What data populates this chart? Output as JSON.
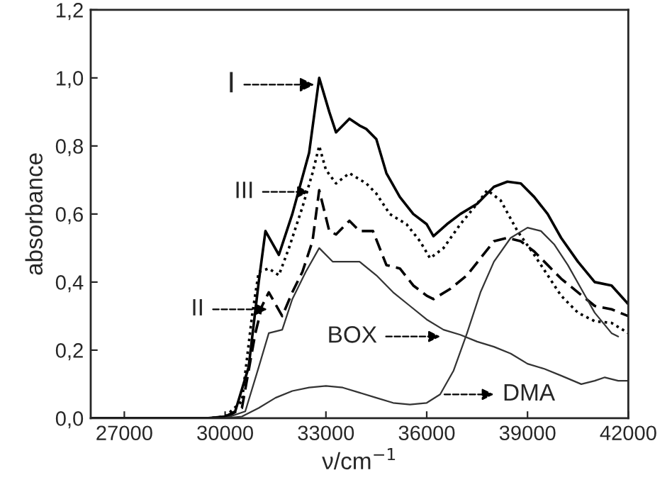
{
  "chart_data": {
    "type": "line",
    "xlabel": "ν/cm$^{−1}$",
    "ylabel": "absorbance",
    "xlim": [
      26000,
      42000
    ],
    "xticks": [
      27000,
      30000,
      33000,
      36000,
      39000,
      42000
    ],
    "ylim": [
      0,
      1.2
    ],
    "yticks": [
      {
        "value": 0,
        "label": "0,0"
      },
      {
        "value": 0.2,
        "label": "0,2"
      },
      {
        "value": 0.4,
        "label": "0,4"
      },
      {
        "value": 0.6,
        "label": "0,6"
      },
      {
        "value": 0.8,
        "label": "0,8"
      },
      {
        "value": 1.0,
        "label": "1,0"
      },
      {
        "value": 1.2,
        "label": "1,2"
      }
    ],
    "grid": false,
    "marker": "none",
    "series": [
      {
        "color": "#000000",
        "line_style": "solid",
        "x": [
          26000,
          29500,
          30000,
          30300,
          30700,
          31000,
          31200,
          31600,
          32000,
          32500,
          32800,
          33100,
          33300,
          33700,
          34000,
          34200,
          34500,
          34800,
          35200,
          35600,
          36000,
          36200,
          36600,
          37000,
          37500,
          38000,
          38400,
          38800,
          39200,
          39600,
          40000,
          40500,
          41000,
          41500,
          42000
        ],
        "values": [
          0,
          0,
          0.005,
          0.02,
          0.15,
          0.4,
          0.55,
          0.48,
          0.6,
          0.78,
          1.0,
          0.9,
          0.84,
          0.88,
          0.86,
          0.85,
          0.82,
          0.72,
          0.65,
          0.6,
          0.57,
          0.535,
          0.57,
          0.6,
          0.63,
          0.68,
          0.695,
          0.69,
          0.65,
          0.6,
          0.53,
          0.46,
          0.4,
          0.39,
          0.335
        ]
      },
      {
        "color": "#000000",
        "line_style": "dotted",
        "x": [
          26000,
          29500,
          30000,
          30500,
          30800,
          31000,
          31300,
          31600,
          31900,
          32300,
          32600,
          32800,
          33000,
          33300,
          33700,
          34200,
          34500,
          34900,
          35400,
          35800,
          36100,
          36500,
          37000,
          37500,
          37800,
          38200,
          38700,
          39200,
          39600,
          40000,
          40500,
          41000,
          41500,
          42000
        ],
        "values": [
          0,
          0,
          0.005,
          0.05,
          0.3,
          0.43,
          0.44,
          0.42,
          0.5,
          0.62,
          0.72,
          0.8,
          0.73,
          0.69,
          0.72,
          0.69,
          0.66,
          0.6,
          0.57,
          0.52,
          0.47,
          0.5,
          0.57,
          0.63,
          0.67,
          0.64,
          0.55,
          0.48,
          0.42,
          0.36,
          0.31,
          0.285,
          0.28,
          0.25
        ]
      },
      {
        "color": "#000000",
        "line_style": "dashed",
        "x": [
          30000,
          30500,
          30900,
          31100,
          31300,
          31700,
          32000,
          32300,
          32600,
          32800,
          33100,
          33300,
          33700,
          34000,
          34400,
          34800,
          35200,
          35600,
          36000,
          36200,
          36700,
          37200,
          37600,
          38000,
          38400,
          38800,
          39200,
          39600,
          40000,
          40500,
          41000,
          41500,
          42000
        ],
        "values": [
          0,
          0.03,
          0.25,
          0.33,
          0.37,
          0.3,
          0.37,
          0.43,
          0.52,
          0.67,
          0.55,
          0.54,
          0.58,
          0.55,
          0.55,
          0.45,
          0.44,
          0.39,
          0.36,
          0.35,
          0.38,
          0.42,
          0.47,
          0.52,
          0.53,
          0.52,
          0.49,
          0.45,
          0.41,
          0.37,
          0.33,
          0.32,
          0.3
        ]
      },
      {
        "color": "#333333",
        "line_style": "solid",
        "x": [
          30000,
          30600,
          31000,
          31300,
          31700,
          32000,
          32400,
          32800,
          33200,
          33500,
          34000,
          34500,
          35000,
          35500,
          36000,
          36500,
          37000,
          37500,
          38000,
          38500,
          39000,
          39500,
          40000,
          40600,
          41000,
          41300,
          41700,
          42000
        ],
        "values": [
          0,
          0.02,
          0.15,
          0.25,
          0.26,
          0.35,
          0.43,
          0.5,
          0.46,
          0.46,
          0.46,
          0.42,
          0.37,
          0.33,
          0.29,
          0.26,
          0.245,
          0.225,
          0.21,
          0.19,
          0.16,
          0.145,
          0.125,
          0.1,
          0.11,
          0.12,
          0.11,
          0.11
        ]
      },
      {
        "color": "#333333",
        "line_style": "solid",
        "x": [
          30000,
          30500,
          31000,
          31500,
          32000,
          32500,
          33000,
          33500,
          34000,
          34500,
          35000,
          35500,
          36000,
          36400,
          36800,
          37200,
          37600,
          38000,
          38500,
          39000,
          39400,
          39800,
          40200,
          40600,
          41000,
          41500,
          41700
        ],
        "values": [
          0,
          0.005,
          0.03,
          0.06,
          0.08,
          0.09,
          0.095,
          0.09,
          0.075,
          0.06,
          0.045,
          0.04,
          0.045,
          0.07,
          0.14,
          0.25,
          0.37,
          0.46,
          0.53,
          0.56,
          0.55,
          0.51,
          0.45,
          0.38,
          0.31,
          0.25,
          0.24
        ]
      }
    ],
    "annotations": [
      {
        "text": "I",
        "x": 32650,
        "y": 0.98
      },
      {
        "text": "III",
        "x": 32500,
        "y": 0.665
      },
      {
        "text": "II",
        "x": 31250,
        "y": 0.32
      },
      {
        "text": "BOX",
        "x": 36400,
        "y": 0.24
      },
      {
        "text": "DMA",
        "x": 36500,
        "y": 0.07
      }
    ]
  }
}
